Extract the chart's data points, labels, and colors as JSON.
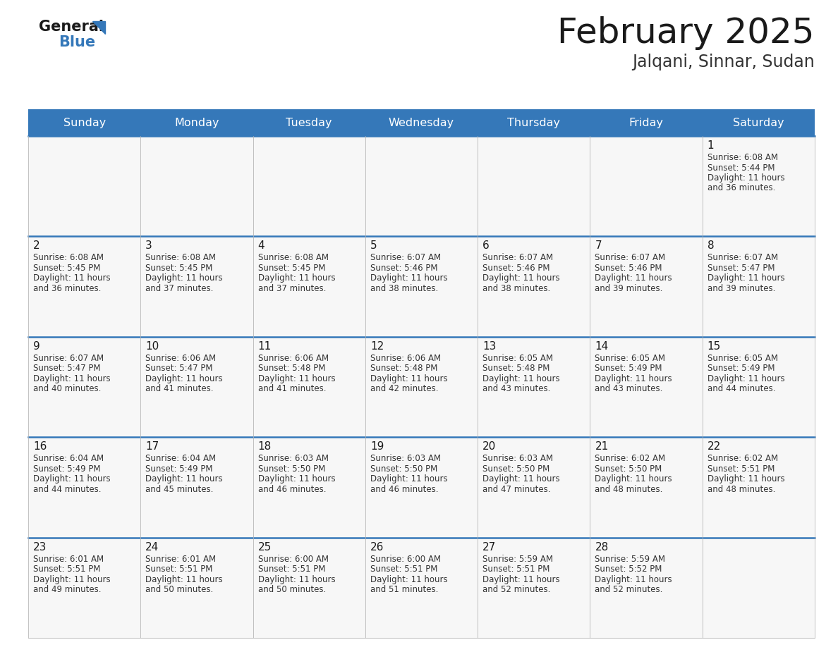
{
  "title": "February 2025",
  "subtitle": "Jalqani, Sinnar, Sudan",
  "header_color": "#3578B9",
  "header_text_color": "#FFFFFF",
  "day_names": [
    "Sunday",
    "Monday",
    "Tuesday",
    "Wednesday",
    "Thursday",
    "Friday",
    "Saturday"
  ],
  "days": [
    {
      "date": 1,
      "col": 6,
      "row": 0,
      "sunrise": "6:08 AM",
      "sunset": "5:44 PM",
      "daylight_h": "11 hours",
      "daylight_m": "and 36 minutes."
    },
    {
      "date": 2,
      "col": 0,
      "row": 1,
      "sunrise": "6:08 AM",
      "sunset": "5:45 PM",
      "daylight_h": "11 hours",
      "daylight_m": "and 36 minutes."
    },
    {
      "date": 3,
      "col": 1,
      "row": 1,
      "sunrise": "6:08 AM",
      "sunset": "5:45 PM",
      "daylight_h": "11 hours",
      "daylight_m": "and 37 minutes."
    },
    {
      "date": 4,
      "col": 2,
      "row": 1,
      "sunrise": "6:08 AM",
      "sunset": "5:45 PM",
      "daylight_h": "11 hours",
      "daylight_m": "and 37 minutes."
    },
    {
      "date": 5,
      "col": 3,
      "row": 1,
      "sunrise": "6:07 AM",
      "sunset": "5:46 PM",
      "daylight_h": "11 hours",
      "daylight_m": "and 38 minutes."
    },
    {
      "date": 6,
      "col": 4,
      "row": 1,
      "sunrise": "6:07 AM",
      "sunset": "5:46 PM",
      "daylight_h": "11 hours",
      "daylight_m": "and 38 minutes."
    },
    {
      "date": 7,
      "col": 5,
      "row": 1,
      "sunrise": "6:07 AM",
      "sunset": "5:46 PM",
      "daylight_h": "11 hours",
      "daylight_m": "and 39 minutes."
    },
    {
      "date": 8,
      "col": 6,
      "row": 1,
      "sunrise": "6:07 AM",
      "sunset": "5:47 PM",
      "daylight_h": "11 hours",
      "daylight_m": "and 39 minutes."
    },
    {
      "date": 9,
      "col": 0,
      "row": 2,
      "sunrise": "6:07 AM",
      "sunset": "5:47 PM",
      "daylight_h": "11 hours",
      "daylight_m": "and 40 minutes."
    },
    {
      "date": 10,
      "col": 1,
      "row": 2,
      "sunrise": "6:06 AM",
      "sunset": "5:47 PM",
      "daylight_h": "11 hours",
      "daylight_m": "and 41 minutes."
    },
    {
      "date": 11,
      "col": 2,
      "row": 2,
      "sunrise": "6:06 AM",
      "sunset": "5:48 PM",
      "daylight_h": "11 hours",
      "daylight_m": "and 41 minutes."
    },
    {
      "date": 12,
      "col": 3,
      "row": 2,
      "sunrise": "6:06 AM",
      "sunset": "5:48 PM",
      "daylight_h": "11 hours",
      "daylight_m": "and 42 minutes."
    },
    {
      "date": 13,
      "col": 4,
      "row": 2,
      "sunrise": "6:05 AM",
      "sunset": "5:48 PM",
      "daylight_h": "11 hours",
      "daylight_m": "and 43 minutes."
    },
    {
      "date": 14,
      "col": 5,
      "row": 2,
      "sunrise": "6:05 AM",
      "sunset": "5:49 PM",
      "daylight_h": "11 hours",
      "daylight_m": "and 43 minutes."
    },
    {
      "date": 15,
      "col": 6,
      "row": 2,
      "sunrise": "6:05 AM",
      "sunset": "5:49 PM",
      "daylight_h": "11 hours",
      "daylight_m": "and 44 minutes."
    },
    {
      "date": 16,
      "col": 0,
      "row": 3,
      "sunrise": "6:04 AM",
      "sunset": "5:49 PM",
      "daylight_h": "11 hours",
      "daylight_m": "and 44 minutes."
    },
    {
      "date": 17,
      "col": 1,
      "row": 3,
      "sunrise": "6:04 AM",
      "sunset": "5:49 PM",
      "daylight_h": "11 hours",
      "daylight_m": "and 45 minutes."
    },
    {
      "date": 18,
      "col": 2,
      "row": 3,
      "sunrise": "6:03 AM",
      "sunset": "5:50 PM",
      "daylight_h": "11 hours",
      "daylight_m": "and 46 minutes."
    },
    {
      "date": 19,
      "col": 3,
      "row": 3,
      "sunrise": "6:03 AM",
      "sunset": "5:50 PM",
      "daylight_h": "11 hours",
      "daylight_m": "and 46 minutes."
    },
    {
      "date": 20,
      "col": 4,
      "row": 3,
      "sunrise": "6:03 AM",
      "sunset": "5:50 PM",
      "daylight_h": "11 hours",
      "daylight_m": "and 47 minutes."
    },
    {
      "date": 21,
      "col": 5,
      "row": 3,
      "sunrise": "6:02 AM",
      "sunset": "5:50 PM",
      "daylight_h": "11 hours",
      "daylight_m": "and 48 minutes."
    },
    {
      "date": 22,
      "col": 6,
      "row": 3,
      "sunrise": "6:02 AM",
      "sunset": "5:51 PM",
      "daylight_h": "11 hours",
      "daylight_m": "and 48 minutes."
    },
    {
      "date": 23,
      "col": 0,
      "row": 4,
      "sunrise": "6:01 AM",
      "sunset": "5:51 PM",
      "daylight_h": "11 hours",
      "daylight_m": "and 49 minutes."
    },
    {
      "date": 24,
      "col": 1,
      "row": 4,
      "sunrise": "6:01 AM",
      "sunset": "5:51 PM",
      "daylight_h": "11 hours",
      "daylight_m": "and 50 minutes."
    },
    {
      "date": 25,
      "col": 2,
      "row": 4,
      "sunrise": "6:00 AM",
      "sunset": "5:51 PM",
      "daylight_h": "11 hours",
      "daylight_m": "and 50 minutes."
    },
    {
      "date": 26,
      "col": 3,
      "row": 4,
      "sunrise": "6:00 AM",
      "sunset": "5:51 PM",
      "daylight_h": "11 hours",
      "daylight_m": "and 51 minutes."
    },
    {
      "date": 27,
      "col": 4,
      "row": 4,
      "sunrise": "5:59 AM",
      "sunset": "5:51 PM",
      "daylight_h": "11 hours",
      "daylight_m": "and 52 minutes."
    },
    {
      "date": 28,
      "col": 5,
      "row": 4,
      "sunrise": "5:59 AM",
      "sunset": "5:52 PM",
      "daylight_h": "11 hours",
      "daylight_m": "and 52 minutes."
    }
  ],
  "num_rows": 5,
  "num_cols": 7,
  "bg_color": "#FFFFFF",
  "border_color": "#BBBBBB",
  "date_text_color": "#1A1A1A",
  "info_text_color": "#333333",
  "row_divider_color": "#3578B9",
  "title_color": "#1A1A1A",
  "subtitle_color": "#333333",
  "logo_general_color": "#1A1A1A",
  "logo_blue_color": "#3578B9",
  "logo_triangle_color": "#3578B9"
}
